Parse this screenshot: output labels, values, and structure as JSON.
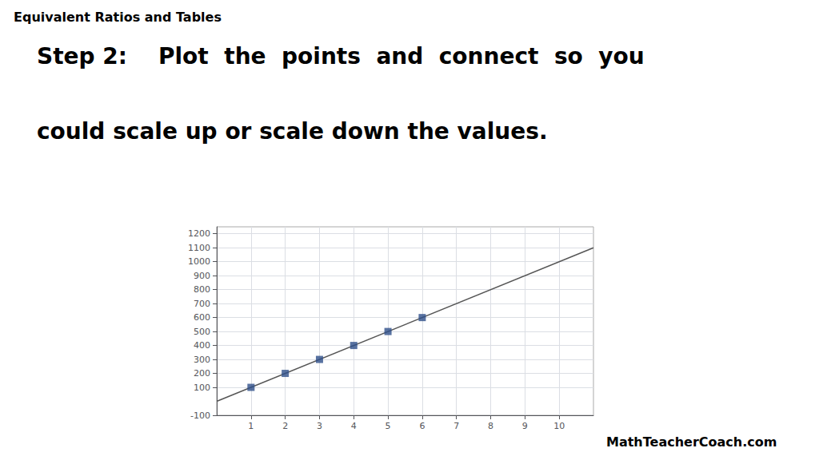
{
  "chart_data": {
    "type": "scatter",
    "title": "Equivalent Ratios and Tables",
    "annotations": [
      "Step 2:    Plot  the  points  and  connect  so  you",
      "could scale up or scale down the values.",
      "MathTeacherCoach.com"
    ],
    "series": [
      {
        "type": "line",
        "color": "#555555",
        "x": [
          0,
          11
        ],
        "values": [
          0,
          1100
        ]
      },
      {
        "type": "scatter",
        "marker": "square",
        "color": "#2e4f8a",
        "x": [
          1,
          2,
          3,
          4,
          5,
          6
        ],
        "values": [
          100,
          200,
          300,
          400,
          500,
          600
        ]
      }
    ],
    "xlim": [
      0,
      11
    ],
    "xticks": [
      1,
      2,
      3,
      4,
      5,
      6,
      7,
      8,
      9,
      10
    ],
    "ylim": [
      -100,
      1250
    ],
    "yticks": [
      -100,
      100,
      200,
      300,
      400,
      500,
      600,
      700,
      800,
      900,
      1000,
      1100,
      1200
    ],
    "grid": true
  }
}
